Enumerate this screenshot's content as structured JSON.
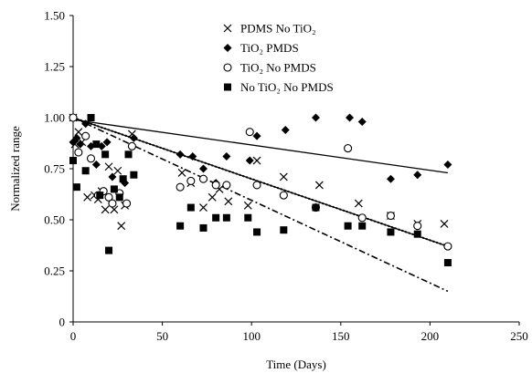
{
  "chart_data": {
    "type": "scatter",
    "title": "",
    "xlabel": "Time (Days)",
    "ylabel": "Normalized range",
    "xlim": [
      0,
      250
    ],
    "ylim": [
      0,
      1.5
    ],
    "xticks": [
      "0",
      "50",
      "100",
      "150",
      "200",
      "250"
    ],
    "yticks": [
      "0",
      "0.25",
      "0.50",
      "0.75",
      "1.00",
      "1.25",
      "1.50"
    ],
    "grid": false,
    "legend_position": "top-center",
    "series": [
      {
        "name": "PDMS No TiO₂",
        "marker": "x",
        "color": "#000000",
        "points": [
          [
            0,
            1.0
          ],
          [
            1,
            0.87
          ],
          [
            3,
            0.93
          ],
          [
            5,
            0.88
          ],
          [
            8,
            0.61
          ],
          [
            12,
            0.62
          ],
          [
            14,
            0.6
          ],
          [
            16,
            0.64
          ],
          [
            18,
            0.55
          ],
          [
            20,
            0.76
          ],
          [
            23,
            0.55
          ],
          [
            25,
            0.74
          ],
          [
            27,
            0.47
          ],
          [
            29,
            0.57
          ],
          [
            33,
            0.92
          ],
          [
            61,
            0.73
          ],
          [
            66,
            0.68
          ],
          [
            73,
            0.56
          ],
          [
            78,
            0.61
          ],
          [
            82,
            0.65
          ],
          [
            87,
            0.59
          ],
          [
            98,
            0.57
          ],
          [
            103,
            0.79
          ],
          [
            118,
            0.71
          ],
          [
            138,
            0.67
          ],
          [
            160,
            0.58
          ],
          [
            178,
            0.52
          ],
          [
            193,
            0.48
          ],
          [
            208,
            0.48
          ]
        ],
        "trend": [
          [
            0,
            1.0
          ],
          [
            210,
            0.37
          ]
        ]
      },
      {
        "name": "TiO₂ PMDS",
        "marker": "diamond",
        "color": "#000000",
        "points": [
          [
            0,
            0.88
          ],
          [
            2,
            0.9
          ],
          [
            4,
            0.87
          ],
          [
            7,
            0.97
          ],
          [
            10,
            0.86
          ],
          [
            13,
            0.77
          ],
          [
            16,
            0.86
          ],
          [
            19,
            0.88
          ],
          [
            22,
            0.71
          ],
          [
            26,
            0.63
          ],
          [
            29,
            0.68
          ],
          [
            34,
            0.9
          ],
          [
            60,
            0.82
          ],
          [
            67,
            0.81
          ],
          [
            73,
            0.75
          ],
          [
            80,
            0.68
          ],
          [
            86,
            0.81
          ],
          [
            99,
            0.79
          ],
          [
            103,
            0.91
          ],
          [
            119,
            0.94
          ],
          [
            136,
            1.0
          ],
          [
            155,
            1.0
          ],
          [
            162,
            0.98
          ],
          [
            178,
            0.7
          ],
          [
            193,
            0.72
          ],
          [
            210,
            0.77
          ]
        ],
        "trend": [
          [
            0,
            0.99
          ],
          [
            210,
            0.73
          ]
        ]
      },
      {
        "name": "TiO₂ No PMDS",
        "marker": "circle",
        "color": "#000000",
        "points": [
          [
            0,
            1.0
          ],
          [
            3,
            0.83
          ],
          [
            7,
            0.91
          ],
          [
            10,
            0.8
          ],
          [
            14,
            0.62
          ],
          [
            17,
            0.64
          ],
          [
            20,
            0.61
          ],
          [
            22,
            0.58
          ],
          [
            26,
            0.63
          ],
          [
            30,
            0.58
          ],
          [
            33,
            0.86
          ],
          [
            60,
            0.66
          ],
          [
            66,
            0.69
          ],
          [
            73,
            0.7
          ],
          [
            80,
            0.67
          ],
          [
            86,
            0.67
          ],
          [
            99,
            0.93
          ],
          [
            103,
            0.67
          ],
          [
            118,
            0.62
          ],
          [
            136,
            0.56
          ],
          [
            154,
            0.85
          ],
          [
            162,
            0.51
          ],
          [
            178,
            0.52
          ],
          [
            193,
            0.47
          ],
          [
            210,
            0.37
          ]
        ],
        "trend": [
          [
            0,
            1.0
          ],
          [
            210,
            0.37
          ]
        ]
      },
      {
        "name": "No TiO₂ No PMDS",
        "marker": "square",
        "color": "#000000",
        "points": [
          [
            0,
            0.79
          ],
          [
            2,
            0.66
          ],
          [
            7,
            0.74
          ],
          [
            10,
            1.0
          ],
          [
            13,
            0.87
          ],
          [
            15,
            0.62
          ],
          [
            18,
            0.82
          ],
          [
            20,
            0.35
          ],
          [
            23,
            0.65
          ],
          [
            26,
            0.61
          ],
          [
            28,
            0.7
          ],
          [
            31,
            0.82
          ],
          [
            34,
            0.72
          ],
          [
            60,
            0.47
          ],
          [
            66,
            0.56
          ],
          [
            73,
            0.46
          ],
          [
            80,
            0.51
          ],
          [
            86,
            0.51
          ],
          [
            98,
            0.51
          ],
          [
            103,
            0.44
          ],
          [
            118,
            0.45
          ],
          [
            136,
            0.56
          ],
          [
            154,
            0.47
          ],
          [
            162,
            0.47
          ],
          [
            178,
            0.44
          ],
          [
            193,
            0.43
          ],
          [
            210,
            0.29
          ]
        ],
        "trend": [
          [
            0,
            1.0
          ],
          [
            210,
            0.15
          ]
        ]
      }
    ]
  }
}
